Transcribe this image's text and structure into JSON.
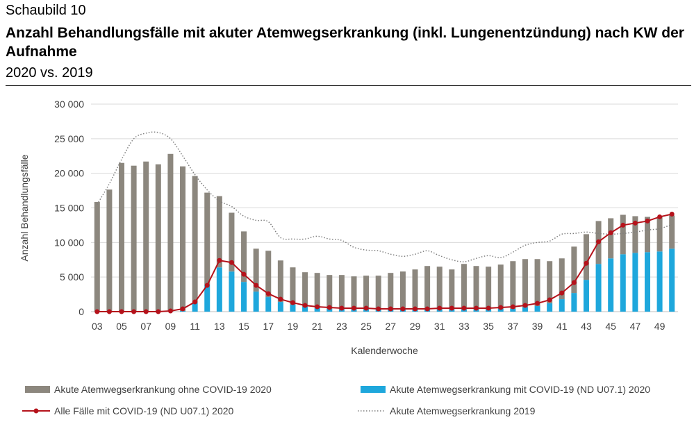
{
  "header": {
    "label": "Schaubild 10",
    "title": "Anzahl Behandlungsfälle mit akuter Atemwegserkrankung (inkl. Lungenentzündung) nach KW der Aufnahme",
    "subtitle": "2020 vs. 2019"
  },
  "chart_data": {
    "type": "bar",
    "xlabel": "Kalenderwoche",
    "ylabel": "Anzahl Behandlungsfälle",
    "ylim": [
      0,
      30000
    ],
    "yticks": [
      0,
      5000,
      10000,
      15000,
      20000,
      25000,
      30000
    ],
    "ytick_labels": [
      "0",
      "5 000",
      "10 000",
      "15 000",
      "20 000",
      "25 000",
      "30 000"
    ],
    "weeks": [
      3,
      4,
      5,
      6,
      7,
      8,
      9,
      10,
      11,
      12,
      13,
      14,
      15,
      16,
      17,
      18,
      19,
      20,
      21,
      22,
      23,
      24,
      25,
      26,
      27,
      28,
      29,
      30,
      31,
      32,
      33,
      34,
      35,
      36,
      37,
      38,
      39,
      40,
      41,
      42,
      43,
      44,
      45,
      46,
      47,
      48,
      49,
      50
    ],
    "xtick_labels": [
      "03",
      "05",
      "07",
      "09",
      "11",
      "13",
      "15",
      "17",
      "19",
      "21",
      "23",
      "25",
      "27",
      "29",
      "31",
      "33",
      "35",
      "37",
      "39",
      "41",
      "43",
      "45",
      "47",
      "49"
    ],
    "grid": true,
    "legend_position": "bottom",
    "series": [
      {
        "name": "Akute Atemwegserkrankung ohne COVID-19 2020",
        "kind": "stacked-bar",
        "color": "#8c877e",
        "values": [
          15850,
          17650,
          21500,
          21100,
          21700,
          21300,
          22800,
          20900,
          18300,
          13300,
          10300,
          8500,
          7300,
          6200,
          6700,
          6000,
          5400,
          5000,
          5100,
          4900,
          5000,
          4800,
          4900,
          4900,
          5300,
          5500,
          5800,
          6300,
          6200,
          5800,
          6600,
          6300,
          6200,
          6400,
          6900,
          7000,
          6800,
          6100,
          5900,
          6700,
          6600,
          6200,
          5800,
          5700,
          5300,
          5100,
          5000,
          4800
        ]
      },
      {
        "name": "Akute Atemwegserkrankung mit COVID-19 (ND U07.1) 2020",
        "kind": "stacked-bar",
        "color": "#1ea7dc",
        "values": [
          0,
          0,
          0,
          0,
          0,
          0,
          0,
          100,
          1300,
          3900,
          6400,
          5800,
          4300,
          2900,
          2100,
          1400,
          1000,
          700,
          500,
          400,
          300,
          300,
          300,
          300,
          300,
          300,
          300,
          300,
          300,
          300,
          300,
          300,
          300,
          400,
          400,
          600,
          800,
          1200,
          1800,
          2700,
          4600,
          6900,
          7700,
          8300,
          8500,
          8600,
          8700,
          9100
        ]
      },
      {
        "name": "Alle Fälle mit COVID-19 (ND U07.1) 2020",
        "kind": "line-marker",
        "color": "#b5121b",
        "values": [
          0,
          0,
          0,
          0,
          0,
          0,
          100,
          400,
          1400,
          3800,
          7400,
          7100,
          5400,
          3800,
          2600,
          1800,
          1300,
          900,
          700,
          600,
          500,
          500,
          500,
          400,
          400,
          400,
          400,
          400,
          500,
          500,
          500,
          500,
          500,
          600,
          700,
          900,
          1200,
          1700,
          2700,
          4200,
          7000,
          10100,
          11400,
          12500,
          12800,
          13100,
          13700,
          14100
        ]
      },
      {
        "name": "Akute Atemwegserkrankung 2019",
        "kind": "dotted-line",
        "color": "#7f7f7f",
        "values": [
          15500,
          18500,
          22000,
          25000,
          25800,
          25900,
          25000,
          22500,
          19800,
          17600,
          16000,
          15200,
          13800,
          13200,
          13000,
          10700,
          10500,
          10500,
          10900,
          10500,
          10300,
          9300,
          8900,
          8800,
          8300,
          8000,
          8300,
          8800,
          8100,
          7500,
          7200,
          7700,
          8100,
          7800,
          8600,
          9600,
          10000,
          10200,
          11200,
          11300,
          11500,
          11300,
          11200,
          11300,
          11500,
          11800,
          12000,
          12600
        ]
      }
    ]
  }
}
